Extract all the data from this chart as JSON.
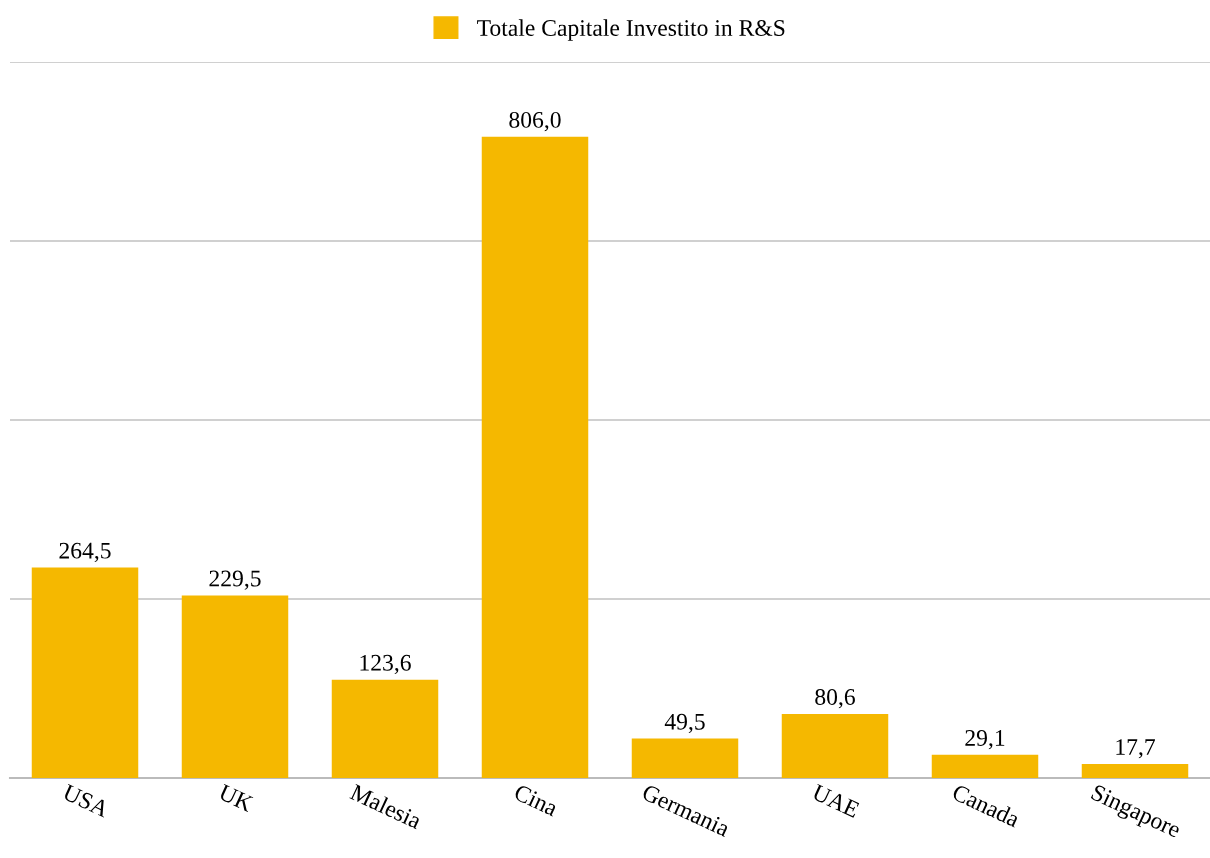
{
  "chart_data": {
    "type": "bar",
    "categories": [
      "USA",
      "UK",
      "Malesia",
      "Cina",
      "Germania",
      "UAE",
      "Canada",
      "Singapore"
    ],
    "series": [
      {
        "name": "Totale Capitale Investito in R&S",
        "color": "#f5b800",
        "values": [
          264.5,
          229.5,
          123.6,
          806.0,
          49.5,
          80.6,
          29.1,
          17.7
        ],
        "value_labels": [
          "264,5",
          "229,5",
          "123,6",
          "806,0",
          "49,5",
          "80,6",
          "29,1",
          "17,7"
        ]
      }
    ],
    "ylim": [
      0,
      900
    ],
    "yticks": [
      {
        "value": 0,
        "label": null
      },
      {
        "value": 225,
        "label": null
      },
      {
        "value": 450,
        "label": null
      },
      {
        "value": 675,
        "label": null
      },
      {
        "value": 900,
        "label": null
      }
    ],
    "tick_labels": "x",
    "grid": "y",
    "legend": "top"
  }
}
